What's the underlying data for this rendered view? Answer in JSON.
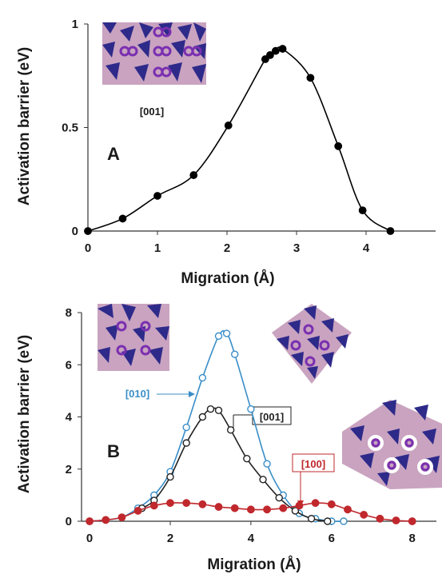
{
  "chart_data": [
    {
      "type": "line",
      "panel_label": "A",
      "xlabel": "Migration (Å)",
      "ylabel": "Activation barrier (eV)",
      "xlim": [
        0,
        5
      ],
      "ylim": [
        0,
        1
      ],
      "xticks": [
        "0",
        "1",
        "2",
        "3",
        "4"
      ],
      "yticks": [
        "0",
        "0.5",
        "1"
      ],
      "grid": false,
      "series": [
        {
          "color": "#000000",
          "marker": "filled-circle",
          "x": [
            0,
            0.5,
            1.0,
            1.52,
            2.02,
            2.55,
            2.62,
            2.7,
            2.8,
            3.2,
            3.6,
            3.95,
            4.35
          ],
          "y": [
            0,
            0.06,
            0.17,
            0.27,
            0.51,
            0.83,
            0.85,
            0.87,
            0.88,
            0.74,
            0.41,
            0.1,
            0
          ]
        }
      ],
      "annotations": [
        {
          "text": "[001]"
        }
      ]
    },
    {
      "type": "line",
      "panel_label": "B",
      "xlabel": "Migration (Å)",
      "ylabel": "Activation barrier (eV)",
      "xlim": [
        -0.2,
        8.6
      ],
      "ylim": [
        0,
        8
      ],
      "xticks": [
        "0",
        "2",
        "4",
        "6",
        "8"
      ],
      "yticks": [
        "0",
        "2",
        "4",
        "6",
        "8"
      ],
      "grid": false,
      "series": [
        {
          "name": "[010]",
          "color": "#3a8ec8",
          "marker": "open-circle",
          "x": [
            0,
            0.4,
            0.8,
            1.2,
            1.6,
            2.0,
            2.4,
            2.8,
            3.2,
            3.4,
            3.6,
            4.0,
            4.4,
            4.8,
            5.2,
            5.6,
            6.0,
            6.3
          ],
          "y": [
            0,
            0.05,
            0.15,
            0.5,
            1.0,
            1.9,
            3.6,
            5.5,
            7.1,
            7.2,
            6.4,
            4.3,
            2.2,
            1.0,
            0.3,
            0.1,
            0,
            0
          ]
        },
        {
          "name": "[001]",
          "color": "#222222",
          "marker": "open-circle",
          "x": [
            1.3,
            1.6,
            2.0,
            2.4,
            2.8,
            3.0,
            3.2,
            3.5,
            3.9,
            4.3,
            4.7,
            5.1,
            5.5,
            5.9
          ],
          "y": [
            0.5,
            0.8,
            1.7,
            3.0,
            4.0,
            4.3,
            4.25,
            3.5,
            2.4,
            1.6,
            0.9,
            0.4,
            0.1,
            0
          ]
        },
        {
          "name": "[100]",
          "color": "#c0282d",
          "marker": "filled-circle",
          "x": [
            0,
            0.4,
            0.8,
            1.2,
            1.6,
            2.0,
            2.4,
            2.8,
            3.2,
            3.6,
            4.0,
            4.4,
            4.8,
            5.2,
            5.6,
            6.0,
            6.4,
            6.8,
            7.2,
            7.6,
            8.0
          ],
          "y": [
            0,
            0.05,
            0.15,
            0.4,
            0.6,
            0.7,
            0.7,
            0.65,
            0.55,
            0.5,
            0.45,
            0.45,
            0.5,
            0.6,
            0.7,
            0.65,
            0.45,
            0.25,
            0.1,
            0.03,
            0
          ]
        }
      ],
      "annotations": [
        {
          "text": "[010]",
          "color": "#3a8ec8"
        },
        {
          "text": "[001]",
          "color": "#222222"
        },
        {
          "text": "[100]",
          "color": "#c0282d"
        }
      ]
    }
  ]
}
